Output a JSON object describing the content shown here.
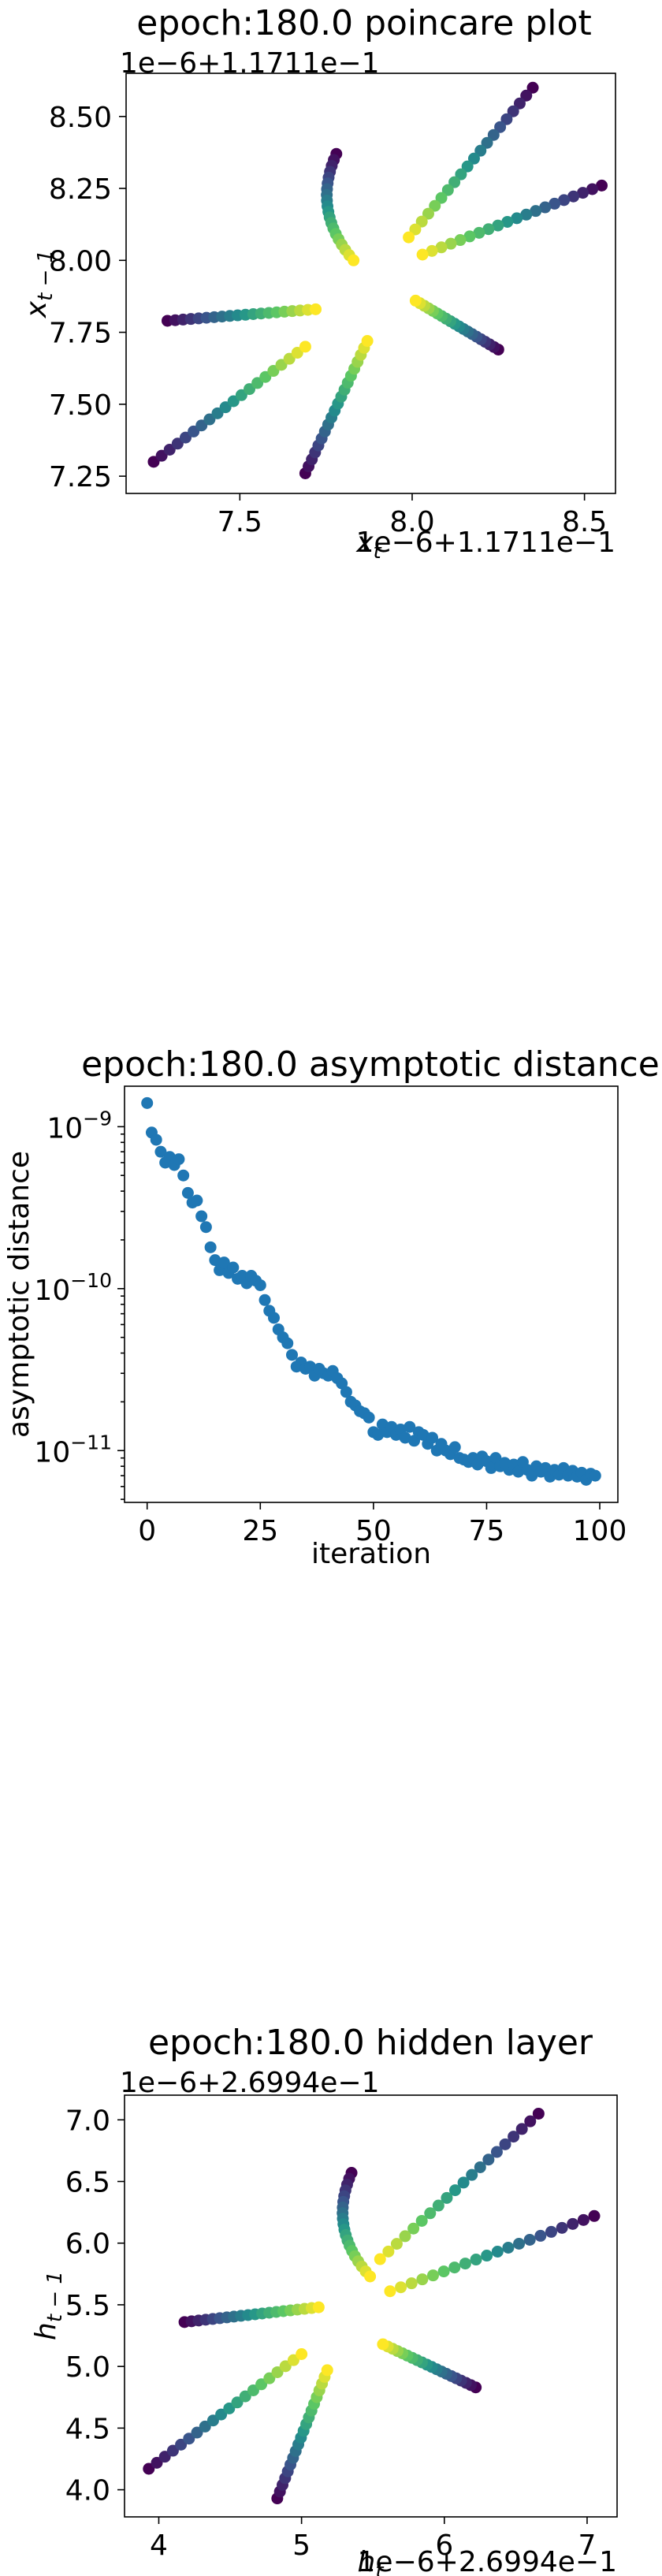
{
  "chart_data": [
    {
      "type": "scatter",
      "title": "epoch:180.0 poincare plot",
      "xlabel": "x_t",
      "ylabel": "x_{t-1}",
      "x_offset_label": "1e−6+1.1711e−1",
      "y_offset_label": "1e−6+1.1711e−1",
      "xlim": [
        7.17,
        8.59
      ],
      "ylim": [
        7.19,
        8.65
      ],
      "xticks": [
        {
          "v": 7.5,
          "label": "7.5"
        },
        {
          "v": 8.0,
          "label": "8.0"
        },
        {
          "v": 8.5,
          "label": "8.5"
        }
      ],
      "yticks": [
        {
          "v": 7.25,
          "label": "7.25"
        },
        {
          "v": 7.5,
          "label": "7.50"
        },
        {
          "v": 7.75,
          "label": "7.75"
        },
        {
          "v": 8.0,
          "label": "8.00"
        },
        {
          "v": 8.25,
          "label": "8.25"
        },
        {
          "v": 8.5,
          "label": "8.50"
        }
      ],
      "colormap": [
        "#440154",
        "#3b528b",
        "#21918c",
        "#5ec962",
        "#fde725"
      ],
      "arms": [
        {
          "x0": 7.25,
          "y0": 7.3,
          "x1": 7.69,
          "y1": 7.7,
          "bulge": 0.0
        },
        {
          "x0": 7.69,
          "y0": 7.26,
          "x1": 7.87,
          "y1": 7.72,
          "bulge": 0.0
        },
        {
          "x0": 7.29,
          "y0": 7.79,
          "x1": 7.72,
          "y1": 7.83,
          "bulge": 0.0
        },
        {
          "x0": 7.78,
          "y0": 8.37,
          "x1": 7.83,
          "y1": 8.0,
          "bulge": -0.05
        },
        {
          "x0": 8.35,
          "y0": 8.6,
          "x1": 7.99,
          "y1": 8.08,
          "bulge": 0.0
        },
        {
          "x0": 8.55,
          "y0": 8.26,
          "x1": 8.03,
          "y1": 8.02,
          "bulge": 0.0
        },
        {
          "x0": 8.25,
          "y0": 7.69,
          "x1": 8.01,
          "y1": 7.86,
          "bulge": 0.0
        }
      ]
    },
    {
      "type": "scatter",
      "title": "epoch:180.0 asymptotic distance",
      "xlabel": "iteration",
      "ylabel": "asymptotic distance",
      "yscale": "log",
      "xlim": [
        -5,
        104
      ],
      "ylim_log10": [
        -11.32,
        -8.75
      ],
      "xticks": [
        {
          "v": 0,
          "label": "0"
        },
        {
          "v": 25,
          "label": "25"
        },
        {
          "v": 50,
          "label": "50"
        },
        {
          "v": 75,
          "label": "75"
        },
        {
          "v": 100,
          "label": "100"
        }
      ],
      "yticks": [
        {
          "v": -9,
          "label": "10",
          "exp": "−9"
        },
        {
          "v": -10,
          "label": "10",
          "exp": "−10"
        },
        {
          "v": -11,
          "label": "10",
          "exp": "−11"
        }
      ],
      "color": "#1f77b4",
      "x": [
        0,
        1,
        2,
        3,
        4,
        5,
        6,
        7,
        8,
        9,
        10,
        11,
        12,
        13,
        14,
        15,
        16,
        17,
        18,
        19,
        20,
        21,
        22,
        23,
        24,
        25,
        26,
        27,
        28,
        29,
        30,
        31,
        32,
        33,
        34,
        35,
        36,
        37,
        38,
        39,
        40,
        41,
        42,
        43,
        44,
        45,
        46,
        47,
        48,
        49,
        50,
        51,
        52,
        53,
        54,
        55,
        56,
        57,
        58,
        59,
        60,
        61,
        62,
        63,
        64,
        65,
        66,
        67,
        68,
        69,
        70,
        71,
        72,
        73,
        74,
        75,
        76,
        77,
        78,
        79,
        80,
        81,
        82,
        83,
        84,
        85,
        86,
        87,
        88,
        89,
        90,
        91,
        92,
        93,
        94,
        95,
        96,
        97,
        98,
        99
      ],
      "y": [
        1.4e-09,
        9.2e-10,
        8.3e-10,
        7e-10,
        6e-10,
        6.5e-10,
        5.8e-10,
        6.3e-10,
        5e-10,
        3.9e-10,
        3.4e-10,
        3.5e-10,
        2.8e-10,
        2.4e-10,
        1.8e-10,
        1.5e-10,
        1.3e-10,
        1.45e-10,
        1.25e-10,
        1.35e-10,
        1.15e-10,
        1.2e-10,
        1.08e-10,
        1.2e-10,
        1.12e-10,
        1.05e-10,
        8.5e-11,
        7.3e-11,
        6.6e-11,
        5.6e-11,
        5e-11,
        4.6e-11,
        3.9e-11,
        3.3e-11,
        3.5e-11,
        3.2e-11,
        3.3e-11,
        2.9e-11,
        3.2e-11,
        3e-11,
        2.9e-11,
        3.1e-11,
        2.8e-11,
        2.6e-11,
        2.3e-11,
        2e-11,
        1.9e-11,
        1.75e-11,
        1.7e-11,
        1.6e-11,
        1.3e-11,
        1.25e-11,
        1.45e-11,
        1.3e-11,
        1.4e-11,
        1.25e-11,
        1.35e-11,
        1.2e-11,
        1.4e-11,
        1.15e-11,
        1.3e-11,
        1.25e-11,
        1.1e-11,
        1.2e-11,
        1e-11,
        1.1e-11,
        1e-11,
        9.5e-12,
        1.05e-11,
        9e-12,
        8.8e-12,
        8.5e-12,
        9e-12,
        8.2e-12,
        9.2e-12,
        8.6e-12,
        7.8e-12,
        9e-12,
        8e-12,
        8.4e-12,
        7.6e-12,
        8.2e-12,
        7.4e-12,
        8.5e-12,
        7.6e-12,
        7e-12,
        8e-12,
        7.4e-12,
        7.8e-12,
        6.9e-12,
        7.6e-12,
        7.1e-12,
        7.8e-12,
        7e-12,
        7.5e-12,
        6.9e-12,
        7.3e-12,
        6.6e-12,
        7.2e-12,
        7e-12
      ]
    },
    {
      "type": "scatter",
      "title": "epoch:180.0 hidden layer",
      "xlabel": "h_t",
      "ylabel": "h_{t-1}",
      "x_offset_label": "1e−6+2.6994e−1",
      "y_offset_label": "1e−6+2.6994e−1",
      "xlim": [
        3.76,
        7.21
      ],
      "ylim": [
        3.78,
        7.2
      ],
      "xticks": [
        {
          "v": 4,
          "label": "4"
        },
        {
          "v": 5,
          "label": "5"
        },
        {
          "v": 6,
          "label": "6"
        },
        {
          "v": 7,
          "label": "7"
        }
      ],
      "yticks": [
        {
          "v": 4.0,
          "label": "4.0"
        },
        {
          "v": 4.5,
          "label": "4.5"
        },
        {
          "v": 5.0,
          "label": "5.0"
        },
        {
          "v": 5.5,
          "label": "5.5"
        },
        {
          "v": 6.0,
          "label": "6.0"
        },
        {
          "v": 6.5,
          "label": "6.5"
        },
        {
          "v": 7.0,
          "label": "7.0"
        }
      ],
      "colormap": [
        "#440154",
        "#3b528b",
        "#21918c",
        "#5ec962",
        "#fde725"
      ],
      "arms": [
        {
          "x0": 3.93,
          "y0": 4.17,
          "x1": 5.0,
          "y1": 5.1,
          "bulge": 0.0
        },
        {
          "x0": 4.83,
          "y0": 3.93,
          "x1": 5.18,
          "y1": 4.97,
          "bulge": 0.0
        },
        {
          "x0": 4.18,
          "y0": 5.36,
          "x1": 5.12,
          "y1": 5.48,
          "bulge": 0.0
        },
        {
          "x0": 5.35,
          "y0": 6.57,
          "x1": 5.48,
          "y1": 5.73,
          "bulge": -0.12
        },
        {
          "x0": 6.66,
          "y0": 7.05,
          "x1": 5.55,
          "y1": 5.87,
          "bulge": 0.0
        },
        {
          "x0": 7.05,
          "y0": 6.22,
          "x1": 5.62,
          "y1": 5.61,
          "bulge": 0.0
        },
        {
          "x0": 6.22,
          "y0": 4.83,
          "x1": 5.57,
          "y1": 5.18,
          "bulge": 0.0
        }
      ]
    }
  ]
}
